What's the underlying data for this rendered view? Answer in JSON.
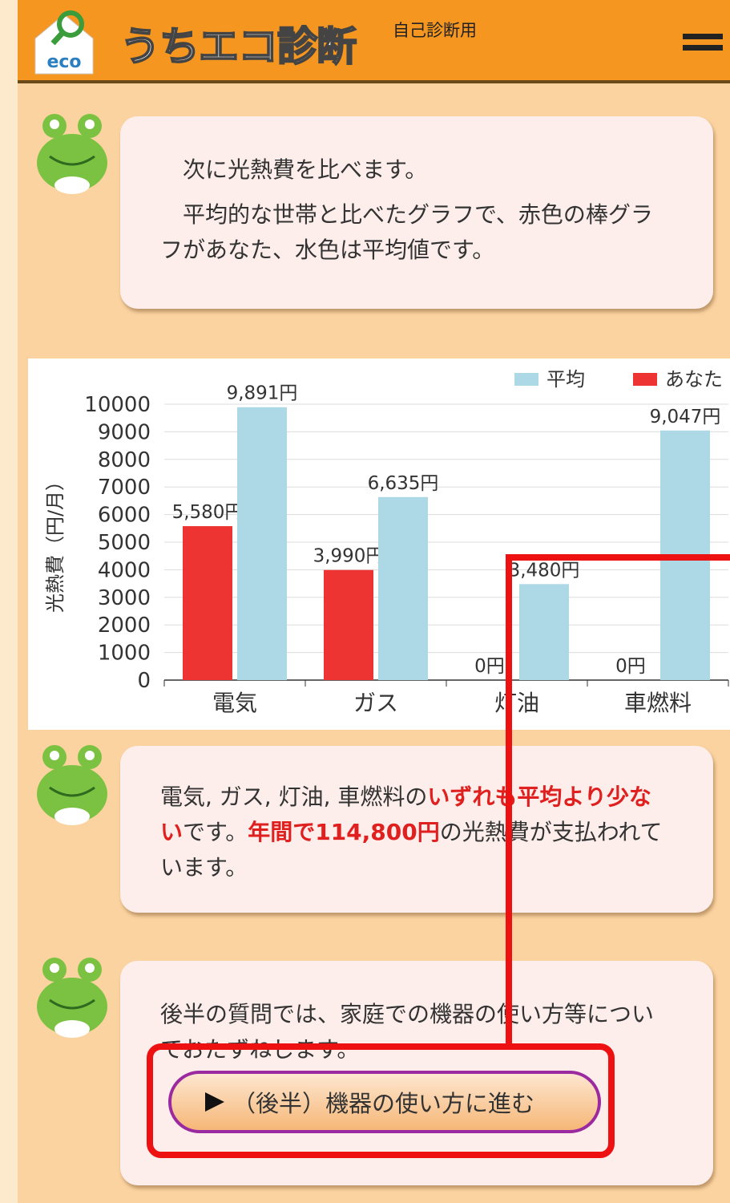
{
  "header": {
    "logo_small": "eco",
    "title": "うちエコ診断",
    "subtitle": "自己診断用"
  },
  "messages": [
    {
      "paragraphs": [
        "次に光熱費を比べます。",
        "平均的な世帯と比べたグラフで、赤色の棒グラフがあなた、水色は平均値です。"
      ]
    },
    {
      "runs": [
        {
          "text": "電気, ガス, 灯油, 車燃料の",
          "strong": false
        },
        {
          "text": "いずれも平均より少ない",
          "strong": true
        },
        {
          "text": "です。",
          "strong": false
        },
        {
          "text": "年間で114,800円",
          "strong": true
        },
        {
          "text": "の光熱費が支払われています。",
          "strong": false
        }
      ]
    },
    {
      "paragraphs": [
        "後半の質問では、家庭での機器の使い方等についておたずねします。"
      ],
      "button": "（後半）機器の使い方に進む"
    }
  ],
  "chart_data": {
    "type": "bar",
    "y_label": "光熱費（円/月）",
    "categories": [
      "電気",
      "ガス",
      "灯油",
      "車燃料"
    ],
    "series": [
      {
        "name": "あなた",
        "color": "#ee3333",
        "values": [
          5580,
          3990,
          0,
          0
        ],
        "value_labels": [
          "5,580円",
          "3,990円",
          "0円",
          "0円"
        ]
      },
      {
        "name": "平均",
        "color": "#add8e6",
        "values": [
          9891,
          6635,
          3480,
          9047
        ],
        "value_labels": [
          "9,891円",
          "6,635円",
          "3,480円",
          "9,047円"
        ]
      }
    ],
    "ylim": [
      0,
      10000
    ],
    "yticks": [
      0,
      1000,
      2000,
      3000,
      4000,
      5000,
      6000,
      7000,
      8000,
      9000,
      10000
    ],
    "grid": true
  }
}
